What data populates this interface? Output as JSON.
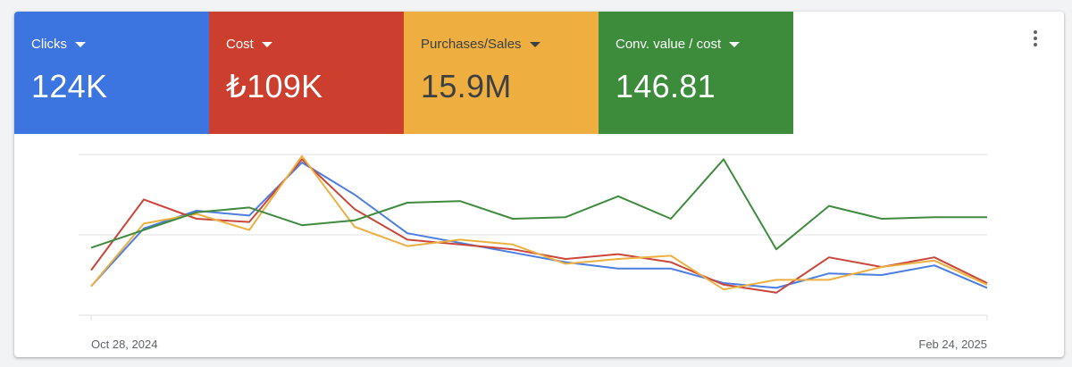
{
  "tiles": [
    {
      "label": "Clicks",
      "value": "124K",
      "color": "#3c74e0"
    },
    {
      "label": "Cost",
      "value": "₺109K",
      "color": "#cc3f2f"
    },
    {
      "label": "Purchases/Sales",
      "value": "15.9M",
      "color": "#efaf40"
    },
    {
      "label": "Conv. value / cost",
      "value": "146.81",
      "color": "#3c8c3c"
    }
  ],
  "chart_data": {
    "type": "line",
    "x_start_label": "Oct 28, 2024",
    "x_end_label": "Feb 24, 2025",
    "grid": true,
    "series": [
      {
        "color": "#4b7ee0",
        "values": [
          0.18,
          0.54,
          0.65,
          0.62,
          0.95,
          0.75,
          0.51,
          0.45,
          0.39,
          0.33,
          0.29,
          0.29,
          0.2,
          0.17,
          0.26,
          0.25,
          0.31,
          0.17
        ]
      },
      {
        "color": "#c9463a",
        "values": [
          0.28,
          0.72,
          0.6,
          0.58,
          0.97,
          0.66,
          0.47,
          0.44,
          0.41,
          0.35,
          0.38,
          0.33,
          0.19,
          0.14,
          0.36,
          0.3,
          0.36,
          0.2
        ]
      },
      {
        "color": "#ecb040",
        "values": [
          0.18,
          0.57,
          0.63,
          0.53,
          0.99,
          0.55,
          0.43,
          0.47,
          0.44,
          0.32,
          0.35,
          0.37,
          0.16,
          0.22,
          0.22,
          0.3,
          0.34,
          0.19
        ]
      },
      {
        "color": "#3f8b3e",
        "values": [
          0.42,
          0.53,
          0.64,
          0.67,
          0.56,
          0.59,
          0.7,
          0.71,
          0.6,
          0.61,
          0.74,
          0.6,
          0.97,
          0.41,
          0.68,
          0.6,
          0.61,
          0.61
        ]
      }
    ]
  }
}
